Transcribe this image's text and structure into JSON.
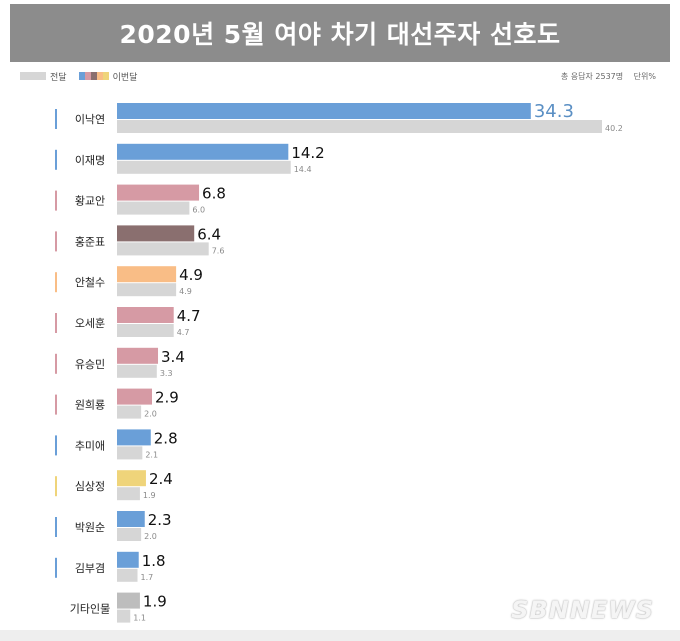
{
  "header": {
    "title": "2020년 5월 여야 차기 대선주자 선호도"
  },
  "legend": {
    "prev_label": "전달",
    "cur_label": "이번달",
    "cur_swatch_colors": [
      "#6a9fd8",
      "#d69aa4",
      "#8a6f6f",
      "#f9bd86",
      "#efd47a"
    ]
  },
  "note": {
    "respondents": "총 응답자 2537명",
    "unit": "단위%"
  },
  "watermark": "SBNNEWS",
  "chart_data": {
    "type": "bar",
    "orientation": "horizontal",
    "title": "2020년 5월 여야 차기 대선주자 선호도",
    "categories": [
      "이낙연",
      "이재명",
      "황교안",
      "홍준표",
      "안철수",
      "오세훈",
      "유승민",
      "원희룡",
      "추미애",
      "심상정",
      "박원순",
      "김부겸",
      "기타인물"
    ],
    "series": [
      {
        "name": "이번달",
        "values": [
          34.3,
          14.2,
          6.8,
          6.4,
          4.9,
          4.7,
          3.4,
          2.9,
          2.8,
          2.4,
          2.3,
          1.8,
          1.9
        ],
        "labels": [
          "34.3",
          "14.2",
          "6.8",
          "6.4",
          "4.9",
          "4.7",
          "3.4",
          "2.9",
          "2.8",
          "2.4",
          "2.3",
          "1.8",
          "1.9"
        ],
        "colors": [
          "#6a9fd8",
          "#6a9fd8",
          "#d69aa4",
          "#8a6f6f",
          "#f9bd86",
          "#d69aa4",
          "#d69aa4",
          "#d69aa4",
          "#6a9fd8",
          "#efd47a",
          "#6a9fd8",
          "#6a9fd8",
          "#bdbdbd"
        ]
      },
      {
        "name": "전달",
        "values": [
          40.2,
          14.4,
          6.0,
          7.6,
          4.9,
          4.7,
          3.3,
          2.0,
          2.1,
          1.9,
          2.0,
          1.7,
          1.1
        ],
        "labels": [
          "40.2",
          "14.4",
          "6.0",
          "7.6",
          "4.9",
          "4.7",
          "3.3",
          "2.0",
          "2.1",
          "1.9",
          "2.0",
          "1.7",
          "1.1"
        ],
        "color": "#d6d6d6"
      }
    ],
    "marker_colors": [
      "#6a9fd8",
      "#6a9fd8",
      "#d69aa4",
      "#d69aa4",
      "#f9bd86",
      "#d69aa4",
      "#d69aa4",
      "#d69aa4",
      "#6a9fd8",
      "#efd47a",
      "#6a9fd8",
      "#6a9fd8",
      null
    ],
    "xlim": [
      0,
      40.2
    ],
    "grid": false,
    "legend_position": "top-left"
  }
}
